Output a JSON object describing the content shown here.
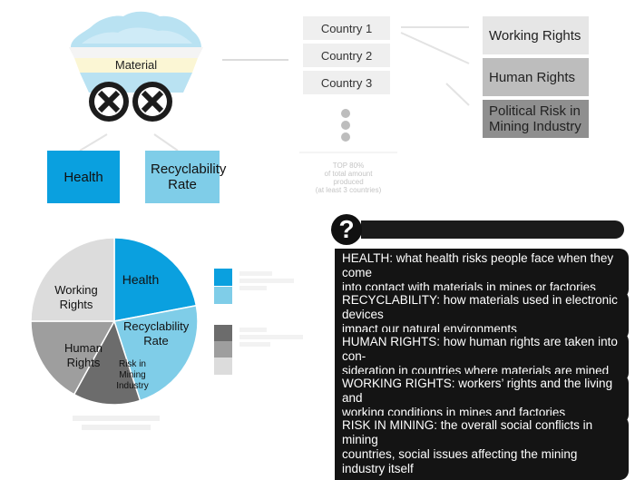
{
  "cart": {
    "material_label": "Material"
  },
  "countries": [
    "Country 1",
    "Country 2",
    "Country 3"
  ],
  "top_note": [
    "TOP 80%",
    "of total amount",
    "produced",
    "(at least 3 countries)"
  ],
  "right_boxes": [
    {
      "label": "Working Rights",
      "color": "#e6e6e6"
    },
    {
      "label": "Human Rights",
      "color": "#bdbdbd"
    },
    {
      "label": "Political Risk in Mining Industry",
      "color": "#8f8f8f"
    }
  ],
  "impact_boxes": [
    {
      "label": "Health",
      "color": "#0aa0df"
    },
    {
      "label": "Recyclability Rate",
      "color": "#7fcde8"
    }
  ],
  "pie": {
    "slices": [
      {
        "label": "Health",
        "value": 22,
        "color": "#0aa0df"
      },
      {
        "label": "Recyclability Rate",
        "value": 23,
        "color": "#7fcde8"
      },
      {
        "label": "Risk in Mining Industry",
        "value": 13,
        "color": "#6c6c6c"
      },
      {
        "label": "Human Rights",
        "value": 17,
        "color": "#9e9e9e"
      },
      {
        "label": "Working Rights",
        "value": 25,
        "color": "#dcdcdc"
      }
    ]
  },
  "legend": {
    "blue_colors": [
      "#0aa0df",
      "#7fcde8"
    ],
    "grey_colors": [
      "#6c6c6c",
      "#9e9e9e",
      "#dcdcdc"
    ]
  },
  "definitions": [
    {
      "lines": [
        "HEALTH: what health risks people face when they come",
        "into contact with materials in mines or factories"
      ]
    },
    {
      "lines": [
        "RECYCLABILITY:  how materials used in electronic devices",
        "impact our natural environments"
      ]
    },
    {
      "lines": [
        "HUMAN RIGHTS: how human rights are taken into con-",
        "sideration in countries where materials are mined"
      ]
    },
    {
      "lines": [
        "WORKING RIGHTS:  workers’ rights and the living and",
        "working conditions in mines and factories"
      ]
    },
    {
      "lines": [
        "RISK IN MINING:  the overall social conflicts in mining",
        "countries, social issues affecting the mining industry itself"
      ]
    }
  ],
  "question_icon": "question-mark-icon",
  "colors": {
    "dark": "#141414",
    "accent_blue": "#0aa0df",
    "light_blue": "#7fcde8"
  }
}
